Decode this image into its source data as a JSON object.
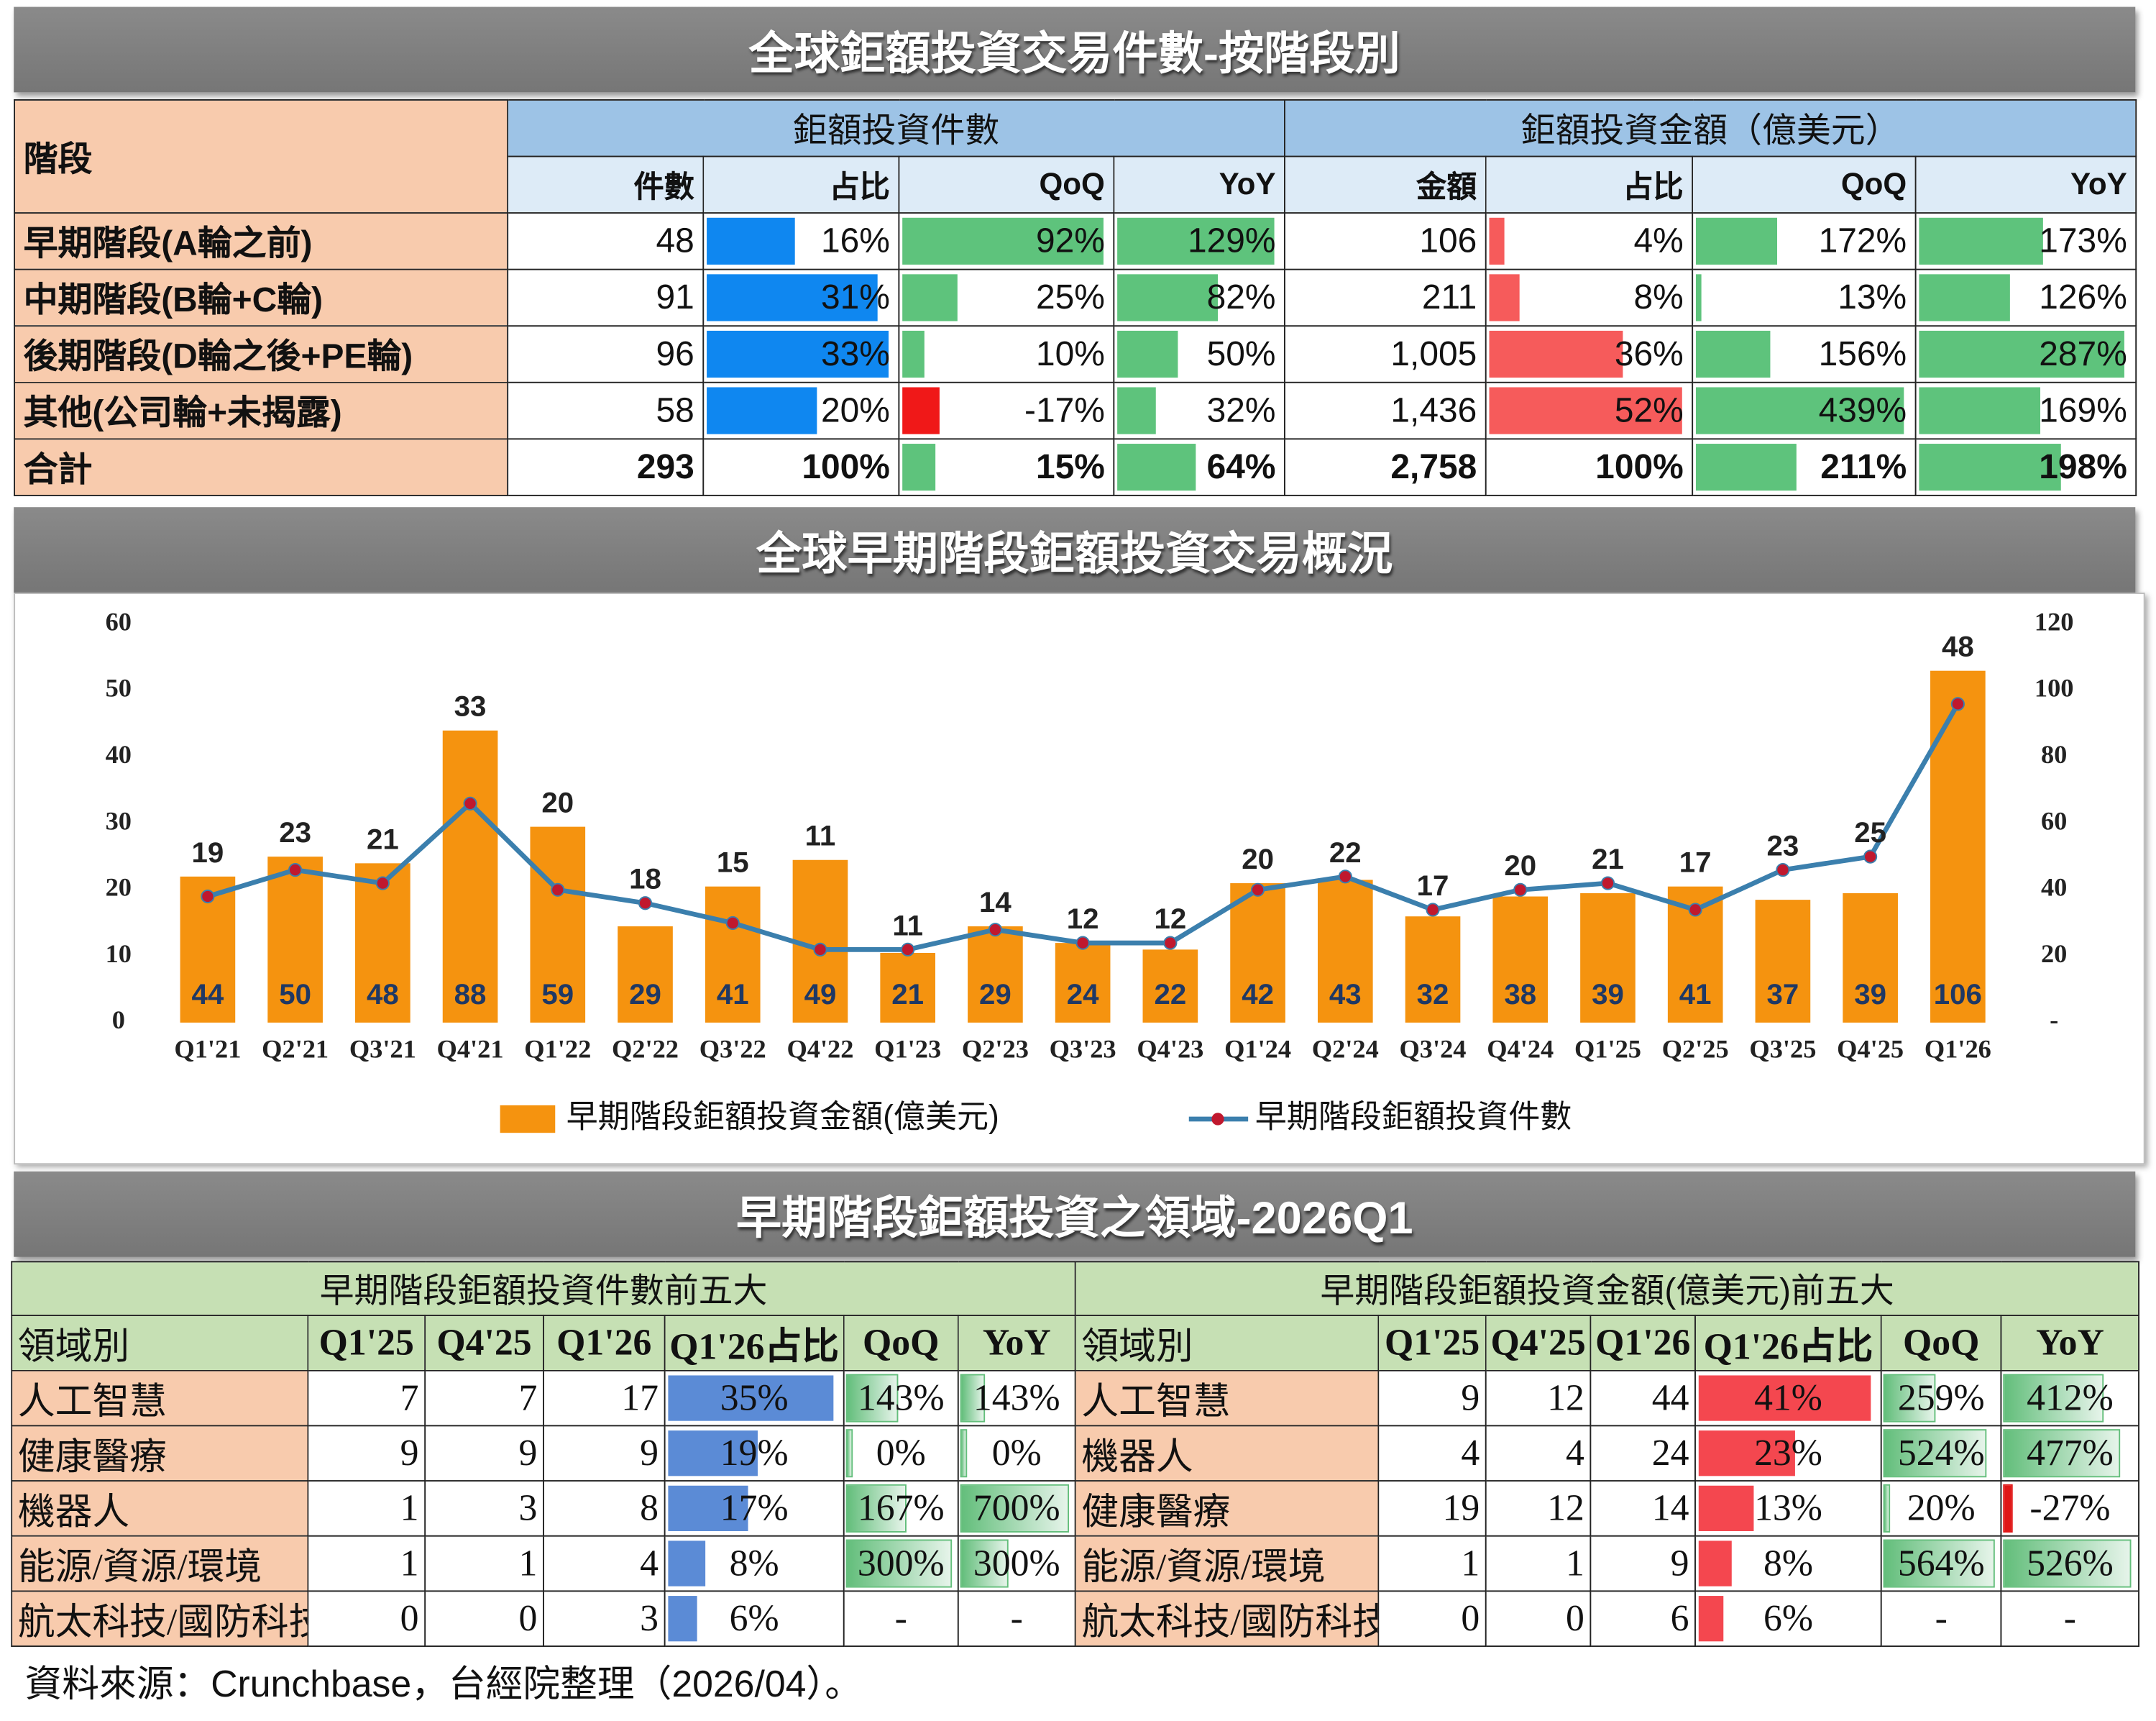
{
  "table1": {
    "title": "全球鉅額投資交易件數-按階段別",
    "stage_header": "階段",
    "groups": [
      "鉅額投資件數",
      "鉅額投資金額（億美元）"
    ],
    "columns": [
      "件數",
      "占比",
      "QoQ",
      "YoY",
      "金額",
      "占比",
      "QoQ",
      "YoY"
    ],
    "rows": [
      [
        "早期階段(A輪之前)",
        "48",
        "16%",
        "92%",
        "129%",
        "106",
        "4%",
        "172%",
        "173%"
      ],
      [
        "中期階段(B輪+C輪)",
        "91",
        "31%",
        "25%",
        "82%",
        "211",
        "8%",
        "13%",
        "126%"
      ],
      [
        "後期階段(D輪之後+PE輪)",
        "96",
        "33%",
        "10%",
        "50%",
        "1,005",
        "36%",
        "156%",
        "287%"
      ],
      [
        "其他(公司輪+未揭露)",
        "58",
        "20%",
        "-17%",
        "32%",
        "1,436",
        "52%",
        "439%",
        "169%"
      ],
      [
        "合計",
        "293",
        "100%",
        "15%",
        "64%",
        "2,758",
        "100%",
        "211%",
        "198%"
      ]
    ]
  },
  "chart_data": {
    "type": "bar",
    "title": "全球早期階段鉅額投資交易概況",
    "categories": [
      "Q1'21",
      "Q2'21",
      "Q3'21",
      "Q4'21",
      "Q1'22",
      "Q2'22",
      "Q3'22",
      "Q4'22",
      "Q1'23",
      "Q2'23",
      "Q3'23",
      "Q4'23",
      "Q1'24",
      "Q2'24",
      "Q3'24",
      "Q4'24",
      "Q1'25",
      "Q2'25",
      "Q3'25",
      "Q4'25",
      "Q1'26"
    ],
    "series": [
      {
        "name": "早期階段鉅額投資金額(億美元)",
        "type": "bar",
        "axis": "y2",
        "color": "#f5930f",
        "values": [
          44,
          50,
          48,
          88,
          59,
          29,
          41,
          49,
          21,
          29,
          24,
          22,
          42,
          43,
          32,
          38,
          39,
          41,
          37,
          39,
          106
        ]
      },
      {
        "name": "早期階段鉅額投資件數",
        "type": "line",
        "color": "#3b7fad",
        "marker_color": "#c0182e",
        "values": [
          19,
          23,
          21,
          33,
          20,
          18,
          15,
          11,
          11,
          14,
          12,
          12,
          20,
          22,
          17,
          20,
          21,
          17,
          23,
          25,
          48
        ]
      }
    ],
    "ylim": [
      0,
      60
    ],
    "yticks": [
      0,
      10,
      20,
      30,
      40,
      50,
      60
    ],
    "y2lim": [
      0,
      120
    ],
    "y2ticks": [
      {
        "value": 0,
        "label": "-"
      },
      20,
      40,
      60,
      80,
      100,
      120
    ]
  },
  "table2": {
    "title": "早期階段鉅額投資之領域-2026Q1",
    "panels": [
      {
        "title": "早期階段鉅額投資件數前五大",
        "columns": [
          "領域別",
          "Q1'25",
          "Q4'25",
          "Q1'26",
          "Q1'26占比",
          "QoQ",
          "YoY"
        ],
        "rows": [
          [
            "人工智慧",
            "7",
            "7",
            "17",
            "35%",
            "143%",
            "143%"
          ],
          [
            "健康醫療",
            "9",
            "9",
            "9",
            "19%",
            "0%",
            "0%"
          ],
          [
            "機器人",
            "1",
            "3",
            "8",
            "17%",
            "167%",
            "700%"
          ],
          [
            "能源/資源/環境",
            "1",
            "1",
            "4",
            "8%",
            "300%",
            "300%"
          ],
          [
            "航太科技/國防科技",
            "0",
            "0",
            "3",
            "6%",
            "-",
            "-"
          ]
        ]
      },
      {
        "title": "早期階段鉅額投資金額(億美元)前五大",
        "columns": [
          "領域別",
          "Q1'25",
          "Q4'25",
          "Q1'26",
          "Q1'26占比",
          "QoQ",
          "YoY"
        ],
        "rows": [
          [
            "人工智慧",
            "9",
            "12",
            "44",
            "41%",
            "259%",
            "412%"
          ],
          [
            "機器人",
            "4",
            "4",
            "24",
            "23%",
            "524%",
            "477%"
          ],
          [
            "健康醫療",
            "19",
            "12",
            "14",
            "13%",
            "20%",
            "-27%"
          ],
          [
            "能源/資源/環境",
            "1",
            "1",
            "9",
            "8%",
            "564%",
            "526%"
          ],
          [
            "航太科技/國防科技",
            "0",
            "0",
            "6",
            "6%",
            "-",
            "-"
          ]
        ]
      }
    ]
  },
  "source": "資料來源：Crunchbase，台經院整理（2026/04）。"
}
